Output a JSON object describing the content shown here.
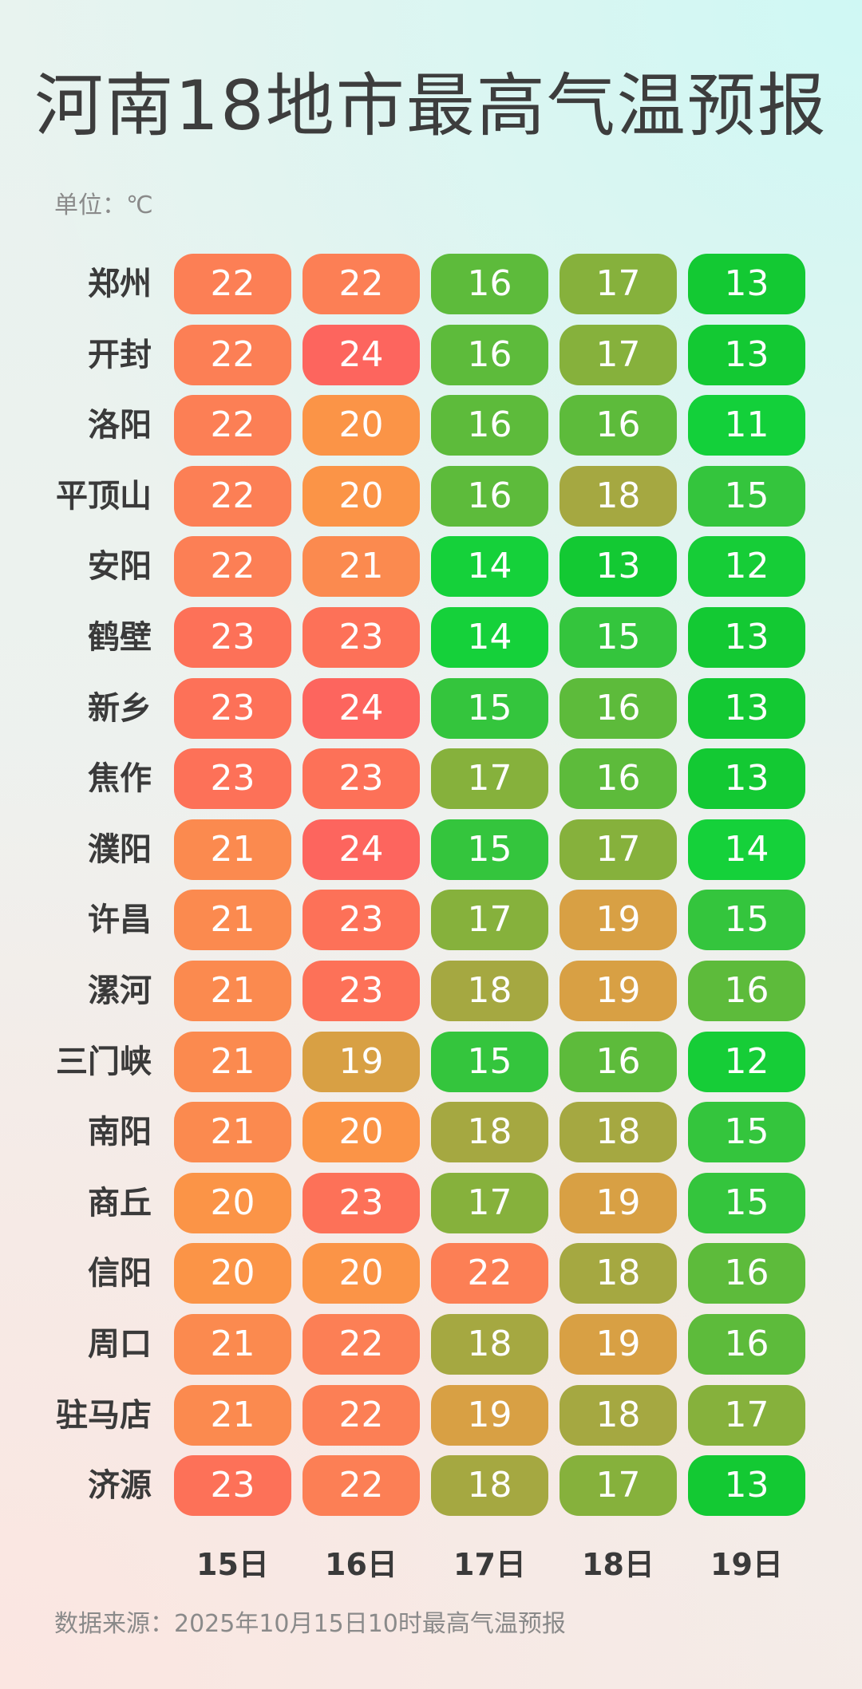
{
  "title": "河南18地市最高气温预报",
  "unit_label": "单位：℃",
  "source": "数据来源：2025年10月15日10时最高气温预报",
  "colors": {
    "11": "#13d03a",
    "12": "#16cd37",
    "13": "#13c933",
    "14": "#15d13a",
    "15": "#34c53d",
    "16": "#5dbb3b",
    "17": "#86b13c",
    "18": "#a5a841",
    "19": "#d8a044",
    "20": "#fb9447",
    "21": "#fb8a4f",
    "22": "#fc7f55",
    "23": "#fd7158",
    "24": "#fd655e"
  },
  "chart_data": {
    "type": "table",
    "title": "河南18地市最高气温预报",
    "unit": "℃",
    "days": [
      "15日",
      "16日",
      "17日",
      "18日",
      "19日"
    ],
    "cities": [
      {
        "name": "郑州",
        "values": [
          22,
          22,
          16,
          17,
          13
        ]
      },
      {
        "name": "开封",
        "values": [
          22,
          24,
          16,
          17,
          13
        ]
      },
      {
        "name": "洛阳",
        "values": [
          22,
          20,
          16,
          16,
          11
        ]
      },
      {
        "name": "平顶山",
        "values": [
          22,
          20,
          16,
          18,
          15
        ]
      },
      {
        "name": "安阳",
        "values": [
          22,
          21,
          14,
          13,
          12
        ]
      },
      {
        "name": "鹤壁",
        "values": [
          23,
          23,
          14,
          15,
          13
        ]
      },
      {
        "name": "新乡",
        "values": [
          23,
          24,
          15,
          16,
          13
        ]
      },
      {
        "name": "焦作",
        "values": [
          23,
          23,
          17,
          16,
          13
        ]
      },
      {
        "name": "濮阳",
        "values": [
          21,
          24,
          15,
          17,
          14
        ]
      },
      {
        "name": "许昌",
        "values": [
          21,
          23,
          17,
          19,
          15
        ]
      },
      {
        "name": "漯河",
        "values": [
          21,
          23,
          18,
          19,
          16
        ]
      },
      {
        "name": "三门峡",
        "values": [
          21,
          19,
          15,
          16,
          12
        ]
      },
      {
        "name": "南阳",
        "values": [
          21,
          20,
          18,
          18,
          15
        ]
      },
      {
        "name": "商丘",
        "values": [
          20,
          23,
          17,
          19,
          15
        ]
      },
      {
        "name": "信阳",
        "values": [
          20,
          20,
          22,
          18,
          16
        ]
      },
      {
        "name": "周口",
        "values": [
          21,
          22,
          18,
          19,
          16
        ]
      },
      {
        "name": "驻马店",
        "values": [
          21,
          22,
          19,
          18,
          17
        ]
      },
      {
        "name": "济源",
        "values": [
          23,
          22,
          18,
          17,
          13
        ]
      }
    ]
  }
}
